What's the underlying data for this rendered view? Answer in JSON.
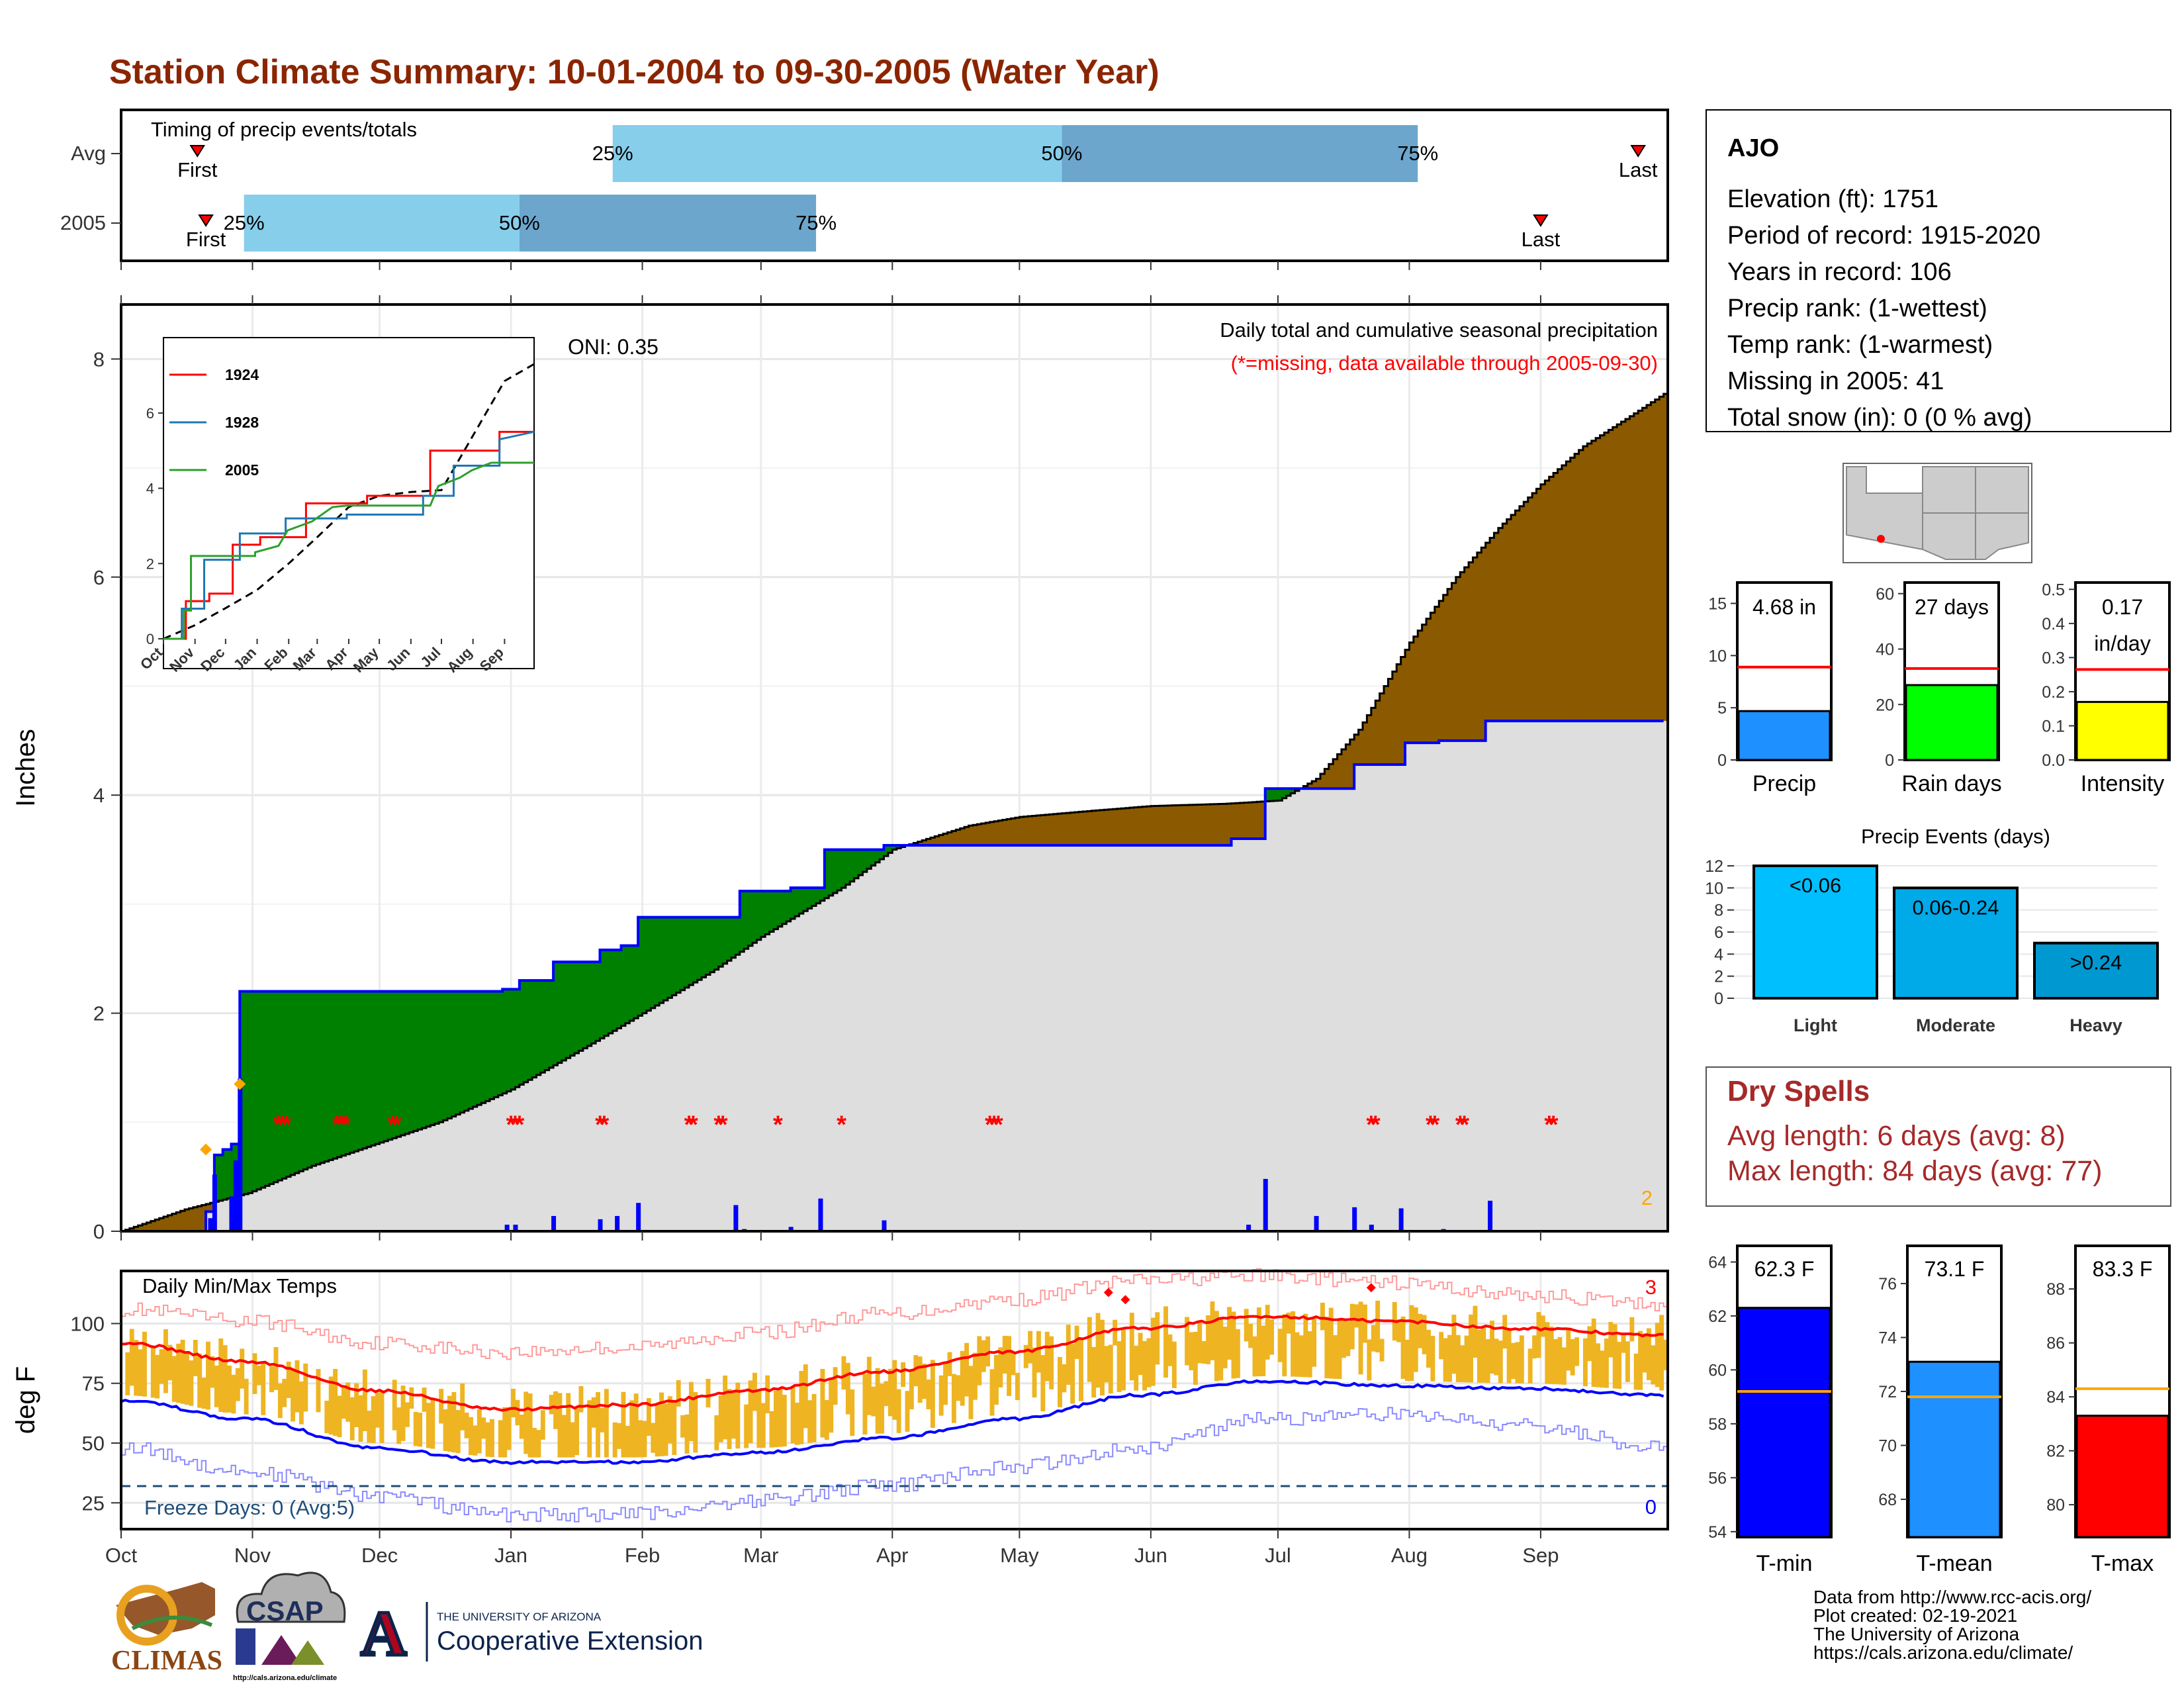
{
  "title": "Station Climate Summary: 10-01-2004 to 09-30-2005 (Water Year)",
  "colors": {
    "title": "#8B2500",
    "normal_cum": "#dedede",
    "surplus": "#008000",
    "deficit": "#8B5A00",
    "cum_line": "#0000ff",
    "daily_bar": "#0000ff",
    "missing": "#ff0000",
    "timing_light": "#87CEEB",
    "timing_dark": "#6CA6CD",
    "tmax": "#ff0000",
    "tmin": "#0000ff",
    "temp_bar": "#EEB422",
    "dry_spell_text": "#A52A2A"
  },
  "timing": {
    "title": "Timing of precip events/totals",
    "rows": [
      {
        "label": "Avg",
        "first": 18,
        "last": 358,
        "p25": 116,
        "p50": 222,
        "p75": 306,
        "first_label": "First",
        "last_label": "Last",
        "p25_label": "25%",
        "p50_label": "50%",
        "p75_label": "75%"
      },
      {
        "label": "2005",
        "first": 20,
        "last": 335,
        "p25": 29,
        "p50": 94,
        "p75": 164,
        "first_label": "First",
        "last_label": "Last",
        "p25_label": "25%",
        "p50_label": "50%",
        "p75_label": "75%"
      }
    ]
  },
  "precip_panel": {
    "ylabel": "Inches",
    "yticks": [
      0,
      2,
      4,
      6,
      8
    ],
    "ylim": [
      0,
      8.5
    ],
    "subtitle": "Daily total and cumulative seasonal precipitation",
    "missing_note": "(*=missing, data available through 2005-09-30)",
    "oni": "ONI: 0.35",
    "corner_count": "2",
    "normal_end": 7.68,
    "observed_steps": [
      [
        0,
        0
      ],
      [
        20,
        0
      ],
      [
        20,
        0.18
      ],
      [
        22,
        0.18
      ],
      [
        22,
        0.7
      ],
      [
        24,
        0.7
      ],
      [
        24,
        0.75
      ],
      [
        26,
        0.75
      ],
      [
        26,
        0.8
      ],
      [
        28,
        0.8
      ],
      [
        28,
        2.2
      ],
      [
        45,
        2.2
      ],
      [
        45,
        2.2
      ],
      [
        90,
        2.2
      ],
      [
        90,
        2.22
      ],
      [
        94,
        2.22
      ],
      [
        94,
        2.3
      ],
      [
        102,
        2.3
      ],
      [
        102,
        2.47
      ],
      [
        113,
        2.47
      ],
      [
        113,
        2.58
      ],
      [
        118,
        2.58
      ],
      [
        118,
        2.62
      ],
      [
        122,
        2.62
      ],
      [
        122,
        2.88
      ],
      [
        146,
        2.88
      ],
      [
        146,
        3.12
      ],
      [
        158,
        3.12
      ],
      [
        158,
        3.15
      ],
      [
        166,
        3.15
      ],
      [
        166,
        3.5
      ],
      [
        180,
        3.5
      ],
      [
        180,
        3.54
      ],
      [
        262,
        3.54
      ],
      [
        262,
        3.6
      ],
      [
        270,
        3.6
      ],
      [
        270,
        4.06
      ],
      [
        291,
        4.06
      ],
      [
        291,
        4.28
      ],
      [
        303,
        4.28
      ],
      [
        303,
        4.48
      ],
      [
        311,
        4.48
      ],
      [
        311,
        4.5
      ],
      [
        322,
        4.5
      ],
      [
        322,
        4.68
      ],
      [
        364,
        4.68
      ]
    ],
    "daily_bars": [
      [
        21,
        0.12
      ],
      [
        22,
        0.52
      ],
      [
        26,
        0.32
      ],
      [
        27,
        0.65
      ],
      [
        28,
        1.4
      ],
      [
        91,
        0.06
      ],
      [
        93,
        0.06
      ],
      [
        102,
        0.14
      ],
      [
        113,
        0.11
      ],
      [
        117,
        0.14
      ],
      [
        122,
        0.26
      ],
      [
        145,
        0.24
      ],
      [
        147,
        0.02
      ],
      [
        158,
        0.04
      ],
      [
        165,
        0.3
      ],
      [
        180,
        0.1
      ],
      [
        266,
        0.06
      ],
      [
        270,
        0.48
      ],
      [
        282,
        0.14
      ],
      [
        291,
        0.22
      ],
      [
        295,
        0.06
      ],
      [
        302,
        0.21
      ],
      [
        312,
        0.02
      ],
      [
        323,
        0.28
      ]
    ],
    "missing_days": [
      37,
      38,
      39,
      51,
      52,
      53,
      64,
      65,
      92,
      93,
      94,
      113,
      114,
      134,
      135,
      141,
      142,
      155,
      170,
      205,
      206,
      207,
      295,
      296,
      309,
      310,
      316,
      317,
      337,
      338
    ],
    "missing_y": 1.0,
    "markers_orange": [
      [
        20,
        0.75
      ],
      [
        28,
        1.35
      ]
    ]
  },
  "inset": {
    "yticks": [
      0,
      2,
      4,
      6
    ],
    "months": [
      "Oct",
      "Nov",
      "Dec",
      "Jan",
      "Feb",
      "Mar",
      "Apr",
      "May",
      "Jun",
      "Jul",
      "Aug",
      "Sep"
    ],
    "series": [
      {
        "name": "1924",
        "color": "#ff0000",
        "points": [
          [
            0,
            0
          ],
          [
            22,
            0
          ],
          [
            22,
            1.0
          ],
          [
            45,
            1.0
          ],
          [
            45,
            1.2
          ],
          [
            68,
            1.2
          ],
          [
            68,
            2.5
          ],
          [
            95,
            2.5
          ],
          [
            95,
            2.7
          ],
          [
            140,
            2.7
          ],
          [
            140,
            3.6
          ],
          [
            200,
            3.6
          ],
          [
            200,
            3.8
          ],
          [
            262,
            3.8
          ],
          [
            262,
            5.0
          ],
          [
            330,
            5.0
          ],
          [
            330,
            5.5
          ],
          [
            364,
            5.5
          ]
        ]
      },
      {
        "name": "1928",
        "color": "#1f77b4",
        "points": [
          [
            0,
            0
          ],
          [
            18,
            0
          ],
          [
            18,
            0.8
          ],
          [
            40,
            0.8
          ],
          [
            40,
            2.1
          ],
          [
            75,
            2.1
          ],
          [
            75,
            2.8
          ],
          [
            120,
            2.8
          ],
          [
            120,
            3.2
          ],
          [
            180,
            3.2
          ],
          [
            180,
            3.3
          ],
          [
            255,
            3.3
          ],
          [
            255,
            3.8
          ],
          [
            285,
            3.8
          ],
          [
            285,
            4.6
          ],
          [
            330,
            4.6
          ],
          [
            330,
            5.3
          ],
          [
            364,
            5.5
          ]
        ]
      },
      {
        "name": "2005",
        "color": "#2ca02c",
        "points": [
          [
            0,
            0
          ],
          [
            20,
            0
          ],
          [
            20,
            0.75
          ],
          [
            27,
            0.75
          ],
          [
            27,
            2.2
          ],
          [
            90,
            2.2
          ],
          [
            90,
            2.3
          ],
          [
            113,
            2.47
          ],
          [
            122,
            2.88
          ],
          [
            146,
            3.12
          ],
          [
            166,
            3.5
          ],
          [
            180,
            3.54
          ],
          [
            262,
            3.54
          ],
          [
            270,
            4.06
          ],
          [
            291,
            4.28
          ],
          [
            303,
            4.48
          ],
          [
            322,
            4.68
          ],
          [
            364,
            4.68
          ]
        ]
      }
    ],
    "normal_end": 7.68
  },
  "temp_panel": {
    "ylabel": "deg F",
    "label": "Daily Min/Max Temps",
    "yticks": [
      25,
      50,
      75,
      100
    ],
    "ylim": [
      14,
      122
    ],
    "freeze_text": "Freeze Days: 0 (Avg:5)",
    "freeze_line": 32,
    "record_high_count": "3",
    "record_low_count": "0",
    "normal_max": [
      [
        0,
        92
      ],
      [
        30,
        84
      ],
      [
        60,
        72
      ],
      [
        90,
        64
      ],
      [
        120,
        66
      ],
      [
        150,
        72
      ],
      [
        180,
        80
      ],
      [
        210,
        88
      ],
      [
        240,
        98
      ],
      [
        270,
        103
      ],
      [
        300,
        101
      ],
      [
        330,
        98
      ],
      [
        364,
        95
      ]
    ],
    "normal_min": [
      [
        0,
        68
      ],
      [
        30,
        60
      ],
      [
        60,
        48
      ],
      [
        90,
        42
      ],
      [
        120,
        42
      ],
      [
        150,
        46
      ],
      [
        180,
        52
      ],
      [
        210,
        60
      ],
      [
        240,
        70
      ],
      [
        270,
        76
      ],
      [
        300,
        74
      ],
      [
        330,
        73
      ],
      [
        364,
        70
      ]
    ],
    "record_high": [
      [
        0,
        106
      ],
      [
        30,
        101
      ],
      [
        60,
        92
      ],
      [
        90,
        88
      ],
      [
        120,
        90
      ],
      [
        150,
        96
      ],
      [
        180,
        104
      ],
      [
        210,
        110
      ],
      [
        240,
        118
      ],
      [
        270,
        120
      ],
      [
        300,
        117
      ],
      [
        330,
        112
      ],
      [
        364,
        108
      ]
    ],
    "record_low": [
      [
        0,
        48
      ],
      [
        30,
        38
      ],
      [
        60,
        28
      ],
      [
        90,
        20
      ],
      [
        120,
        20
      ],
      [
        150,
        26
      ],
      [
        180,
        32
      ],
      [
        210,
        40
      ],
      [
        240,
        48
      ],
      [
        270,
        60
      ],
      [
        300,
        62
      ],
      [
        330,
        58
      ],
      [
        364,
        48
      ]
    ],
    "record_high_markers": [
      [
        233,
        113
      ],
      [
        237,
        110
      ],
      [
        295,
        115
      ]
    ]
  },
  "x_months": [
    "Oct",
    "Nov",
    "Dec",
    "Jan",
    "Feb",
    "Mar",
    "Apr",
    "May",
    "Jun",
    "Jul",
    "Aug",
    "Sep"
  ],
  "x_month_days": [
    0,
    31,
    61,
    92,
    123,
    151,
    182,
    212,
    243,
    273,
    304,
    335
  ],
  "station": {
    "name": "AJO",
    "lines": [
      "Elevation (ft): 1751",
      "Period of record: 1915-2020",
      "Years in record: 106",
      "Precip rank:  (1-wettest)",
      "Temp rank:  (1-warmest)",
      "Missing in 2005: 41",
      "Total snow (in): 0 (0 % avg)"
    ]
  },
  "mini_bars": [
    {
      "label": "Precip",
      "value_label": "4.68 in",
      "value": 4.68,
      "avg": 8.9,
      "yticks": [
        0,
        5,
        10,
        15
      ],
      "ymax": 17,
      "color": "#1E90FF"
    },
    {
      "label": "Rain days",
      "value_label": "27 days",
      "value": 27,
      "avg": 33,
      "yticks": [
        0,
        20,
        40,
        60
      ],
      "ymax": 64,
      "color": "#00FF00"
    },
    {
      "label": "Intensity",
      "value_label": "0.17",
      "value_label2": "in/day",
      "value": 0.17,
      "avg": 0.265,
      "yticks": [
        "0.0",
        "0.1",
        "0.2",
        "0.3",
        "0.4",
        "0.5"
      ],
      "ymax": 0.52,
      "color": "#FFFF00"
    }
  ],
  "events": {
    "title": "Precip Events (days)",
    "yticks": [
      0,
      2,
      4,
      6,
      8,
      10,
      12
    ],
    "bars": [
      {
        "cat": "Light",
        "label": "<0.06",
        "value": 12,
        "color": "#00BFFF"
      },
      {
        "cat": "Moderate",
        "label": "0.06-0.24",
        "value": 10,
        "color": "#00A9E8"
      },
      {
        "cat": "Heavy",
        "label": ">0.24",
        "value": 5,
        "color": "#0098D0"
      }
    ]
  },
  "dry_spells": {
    "title": "Dry Spells",
    "avg_line": "Avg length: 6 days (avg: 8)",
    "max_line": "Max length: 84 days (avg: 77)"
  },
  "temp_bars": [
    {
      "label": "T-min",
      "value_label": "62.3 F",
      "value": 62.3,
      "avg": 59.2,
      "yticks": [
        54,
        56,
        58,
        60,
        62,
        64
      ],
      "ylim": [
        53.8,
        64.6
      ],
      "color": "#0000FF"
    },
    {
      "label": "T-mean",
      "value_label": "73.1 F",
      "value": 73.1,
      "avg": 71.8,
      "yticks": [
        68,
        70,
        72,
        74,
        76
      ],
      "ylim": [
        66.6,
        77.4
      ],
      "color": "#1E90FF"
    },
    {
      "label": "T-max",
      "value_label": "83.3 F",
      "value": 83.3,
      "avg": 84.3,
      "yticks": [
        80,
        82,
        84,
        86,
        88
      ],
      "ylim": [
        78.8,
        89.6
      ],
      "color": "#FF0000"
    }
  ],
  "footer": {
    "lines": [
      "Data from http://www.rcc-acis.org/",
      "Plot created: 02-19-2021",
      "The University of Arizona",
      "https://cals.arizona.edu/climate/"
    ],
    "logos": {
      "climas": "CLIMAS",
      "csap": "CSAP",
      "csap_url": "http://cals.arizona.edu/climate",
      "ua_small": "THE UNIVERSITY OF ARIZONA",
      "ua_big": "Cooperative Extension",
      "ua_letter": "A"
    }
  }
}
